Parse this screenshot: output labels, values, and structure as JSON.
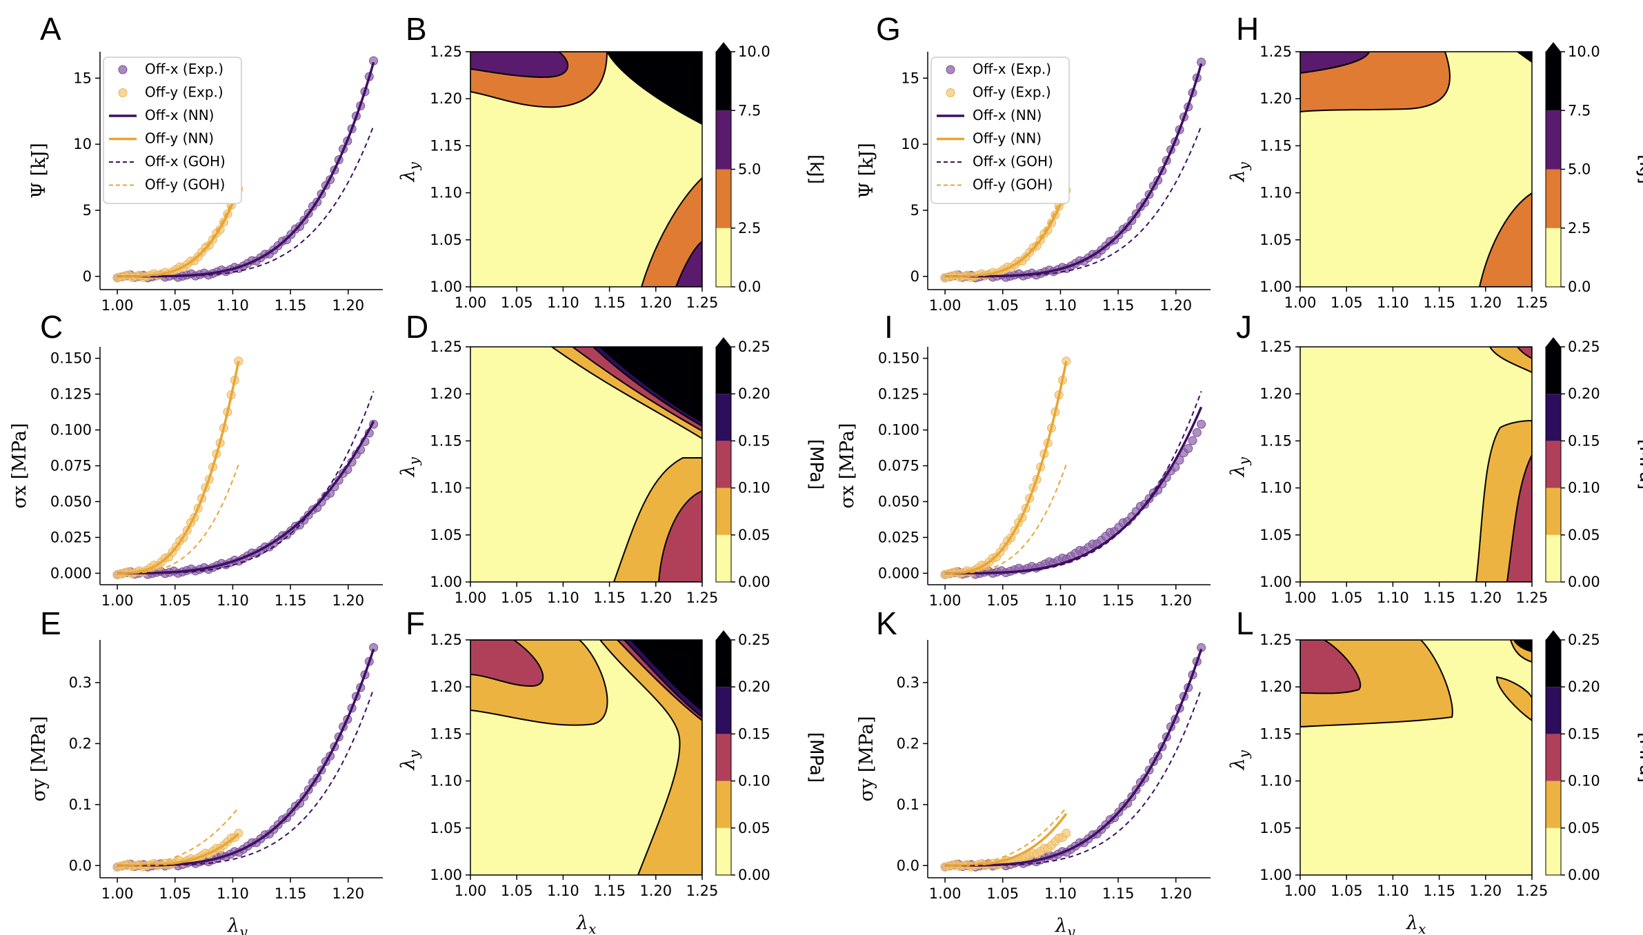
{
  "colors": {
    "offx": "#3d0f62",
    "offy": "#e8a532",
    "offx_marker": "#8c63a8",
    "offy_marker": "#f3c878",
    "contour_levels_energy": [
      "#fcfba6",
      "#e07b34",
      "#5a1a6e",
      "#000004"
    ],
    "contour_levels_stress": [
      "#fcfba6",
      "#edb340",
      "#b0405a",
      "#2c0e5c",
      "#000004"
    ]
  },
  "legend": {
    "entries": [
      "Off-x (Exp.)",
      "Off-y (Exp.)",
      "Off-x (NN)",
      "Off-y (NN)",
      "Off-x (GOH)",
      "Off-y (GOH)"
    ]
  },
  "shared": {
    "x_ticks_line": [
      "1.00",
      "1.05",
      "1.10",
      "1.15",
      "1.20"
    ],
    "x_ticks_contour": [
      "1.00",
      "1.05",
      "1.10",
      "1.15",
      "1.20",
      "1.25"
    ],
    "y_ticks_contour": [
      "1.00",
      "1.05",
      "1.10",
      "1.15",
      "1.20",
      "1.25"
    ],
    "xlabel_line_sym": "λ",
    "xlabel_line_sub": "y",
    "xlabel_contour_sym": "λ",
    "xlabel_contour_sub": "x",
    "ylabel_contour_sym": "λ",
    "ylabel_contour_sub": "y"
  },
  "chart_data": [
    {
      "panel": "A",
      "type": "line",
      "ylabel": "Ψ [kJ]",
      "ylim": [
        -1,
        17
      ],
      "yticks": [
        "0",
        "5",
        "10",
        "15"
      ],
      "xlim": [
        0.985,
        1.23
      ],
      "series": [
        {
          "name": "Off-x (Exp.)",
          "kind": "exp",
          "max_x": 1.222,
          "max_y": 16.2,
          "power": 4.2
        },
        {
          "name": "Off-y (Exp.)",
          "kind": "exp",
          "max_x": 1.105,
          "max_y": 6.6,
          "power": 3.6
        },
        {
          "name": "Off-x (NN)",
          "kind": "nn",
          "max_x": 1.222,
          "max_y": 16.2,
          "power": 4.2
        },
        {
          "name": "Off-y (NN)",
          "kind": "nn",
          "max_x": 1.105,
          "max_y": 6.6,
          "power": 3.6
        },
        {
          "name": "Off-x (GOH)",
          "kind": "goh",
          "max_x": 1.222,
          "max_y": 11.4,
          "power": 4.5
        },
        {
          "name": "Off-y (GOH)",
          "kind": "goh",
          "max_x": 1.105,
          "max_y": 7.0,
          "power": 3.6
        }
      ]
    },
    {
      "panel": "B",
      "type": "contour",
      "label": "[kJ]",
      "cbticks": [
        "0.0",
        "2.5",
        "5.0",
        "7.5",
        "10.0"
      ]
    },
    {
      "panel": "C",
      "type": "line",
      "ylabel": "σx [MPa]",
      "ylim": [
        -0.008,
        0.158
      ],
      "yticks": [
        "0.000",
        "0.025",
        "0.050",
        "0.075",
        "0.100",
        "0.125",
        "0.150"
      ],
      "xlim": [
        0.985,
        1.23
      ],
      "series": [
        {
          "name": "Off-x (Exp.)",
          "kind": "exp",
          "max_x": 1.222,
          "max_y": 0.103,
          "power": 3.2
        },
        {
          "name": "Off-y (Exp.)",
          "kind": "exp",
          "max_x": 1.105,
          "max_y": 0.148,
          "power": 2.9
        },
        {
          "name": "Off-x (NN)",
          "kind": "nn",
          "max_x": 1.222,
          "max_y": 0.106,
          "power": 3.2
        },
        {
          "name": "Off-y (NN)",
          "kind": "nn",
          "max_x": 1.105,
          "max_y": 0.148,
          "power": 2.9
        },
        {
          "name": "Off-x (GOH)",
          "kind": "goh",
          "max_x": 1.222,
          "max_y": 0.127,
          "power": 3.9
        },
        {
          "name": "Off-y (GOH)",
          "kind": "goh",
          "max_x": 1.105,
          "max_y": 0.076,
          "power": 3.2
        }
      ]
    },
    {
      "panel": "D",
      "type": "contour",
      "label": "[MPa]",
      "cbticks": [
        "0.00",
        "0.05",
        "0.10",
        "0.15",
        "0.20",
        "0.25"
      ]
    },
    {
      "panel": "E",
      "type": "line",
      "ylabel": "σy [MPa]",
      "ylim": [
        -0.02,
        0.37
      ],
      "yticks": [
        "0.0",
        "0.1",
        "0.2",
        "0.3"
      ],
      "xlim": [
        0.985,
        1.23
      ],
      "series": [
        {
          "name": "Off-x (Exp.)",
          "kind": "exp",
          "max_x": 1.222,
          "max_y": 0.355,
          "power": 3.6
        },
        {
          "name": "Off-y (Exp.)",
          "kind": "exp",
          "max_x": 1.105,
          "max_y": 0.053,
          "power": 3.4
        },
        {
          "name": "Off-x (NN)",
          "kind": "nn",
          "max_x": 1.222,
          "max_y": 0.355,
          "power": 3.6
        },
        {
          "name": "Off-y (NN)",
          "kind": "nn",
          "max_x": 1.105,
          "max_y": 0.052,
          "power": 3.4
        },
        {
          "name": "Off-x (GOH)",
          "kind": "goh",
          "max_x": 1.222,
          "max_y": 0.29,
          "power": 4.2
        },
        {
          "name": "Off-y (GOH)",
          "kind": "goh",
          "max_x": 1.105,
          "max_y": 0.095,
          "power": 2.6
        }
      ]
    },
    {
      "panel": "F",
      "type": "contour",
      "label": "[MPa]",
      "cbticks": [
        "0.00",
        "0.05",
        "0.10",
        "0.15",
        "0.20",
        "0.25"
      ]
    },
    {
      "panel": "G",
      "type": "line",
      "ylabel": "Ψ [kJ]",
      "ylim": [
        -1,
        17
      ],
      "yticks": [
        "0",
        "5",
        "10",
        "15"
      ],
      "xlim": [
        0.985,
        1.23
      ],
      "series": [
        {
          "name": "Off-x (Exp.)",
          "kind": "exp",
          "max_x": 1.222,
          "max_y": 16.1,
          "power": 4.2
        },
        {
          "name": "Off-y (Exp.)",
          "kind": "exp",
          "max_x": 1.105,
          "max_y": 6.5,
          "power": 3.6
        },
        {
          "name": "Off-x (NN)",
          "kind": "nn",
          "max_x": 1.222,
          "max_y": 16.1,
          "power": 4.2
        },
        {
          "name": "Off-y (NN)",
          "kind": "nn",
          "max_x": 1.105,
          "max_y": 6.5,
          "power": 3.6
        },
        {
          "name": "Off-x (GOH)",
          "kind": "goh",
          "max_x": 1.222,
          "max_y": 11.4,
          "power": 4.5
        },
        {
          "name": "Off-y (GOH)",
          "kind": "goh",
          "max_x": 1.105,
          "max_y": 7.0,
          "power": 3.6
        }
      ]
    },
    {
      "panel": "H",
      "type": "contour",
      "label": "[kJ]",
      "cbticks": [
        "0.0",
        "2.5",
        "5.0",
        "7.5",
        "10.0"
      ]
    },
    {
      "panel": "I",
      "type": "line",
      "ylabel": "σx [MPa]",
      "ylim": [
        -0.008,
        0.158
      ],
      "yticks": [
        "0.000",
        "0.025",
        "0.050",
        "0.075",
        "0.100",
        "0.125",
        "0.150"
      ],
      "xlim": [
        0.985,
        1.23
      ],
      "series": [
        {
          "name": "Off-x (Exp.)",
          "kind": "exp",
          "max_x": 1.222,
          "max_y": 0.103,
          "power": 3.0
        },
        {
          "name": "Off-y (Exp.)",
          "kind": "exp",
          "max_x": 1.105,
          "max_y": 0.148,
          "power": 2.9
        },
        {
          "name": "Off-x (NN)",
          "kind": "nn",
          "max_x": 1.222,
          "max_y": 0.116,
          "power": 3.6
        },
        {
          "name": "Off-y (NN)",
          "kind": "nn",
          "max_x": 1.105,
          "max_y": 0.148,
          "power": 2.9
        },
        {
          "name": "Off-x (GOH)",
          "kind": "goh",
          "max_x": 1.222,
          "max_y": 0.127,
          "power": 3.9
        },
        {
          "name": "Off-y (GOH)",
          "kind": "goh",
          "max_x": 1.105,
          "max_y": 0.076,
          "power": 3.2
        }
      ]
    },
    {
      "panel": "J",
      "type": "contour",
      "label": "[MPa]",
      "cbticks": [
        "0.00",
        "0.05",
        "0.10",
        "0.15",
        "0.20",
        "0.25"
      ]
    },
    {
      "panel": "K",
      "type": "line",
      "ylabel": "σy [MPa]",
      "ylim": [
        -0.02,
        0.37
      ],
      "yticks": [
        "0.0",
        "0.1",
        "0.2",
        "0.3"
      ],
      "xlim": [
        0.985,
        1.23
      ],
      "series": [
        {
          "name": "Off-x (Exp.)",
          "kind": "exp",
          "max_x": 1.222,
          "max_y": 0.355,
          "power": 3.6
        },
        {
          "name": "Off-y (Exp.)",
          "kind": "exp",
          "max_x": 1.105,
          "max_y": 0.053,
          "power": 3.4
        },
        {
          "name": "Off-x (NN)",
          "kind": "nn",
          "max_x": 1.222,
          "max_y": 0.355,
          "power": 3.6
        },
        {
          "name": "Off-y (NN)",
          "kind": "nn",
          "max_x": 1.105,
          "max_y": 0.085,
          "power": 3.2
        },
        {
          "name": "Off-x (GOH)",
          "kind": "goh",
          "max_x": 1.222,
          "max_y": 0.29,
          "power": 4.2
        },
        {
          "name": "Off-y (GOH)",
          "kind": "goh",
          "max_x": 1.105,
          "max_y": 0.095,
          "power": 2.6
        }
      ]
    },
    {
      "panel": "L",
      "type": "contour",
      "label": "[MPa]",
      "cbticks": [
        "0.00",
        "0.05",
        "0.10",
        "0.15",
        "0.20",
        "0.25"
      ]
    }
  ]
}
